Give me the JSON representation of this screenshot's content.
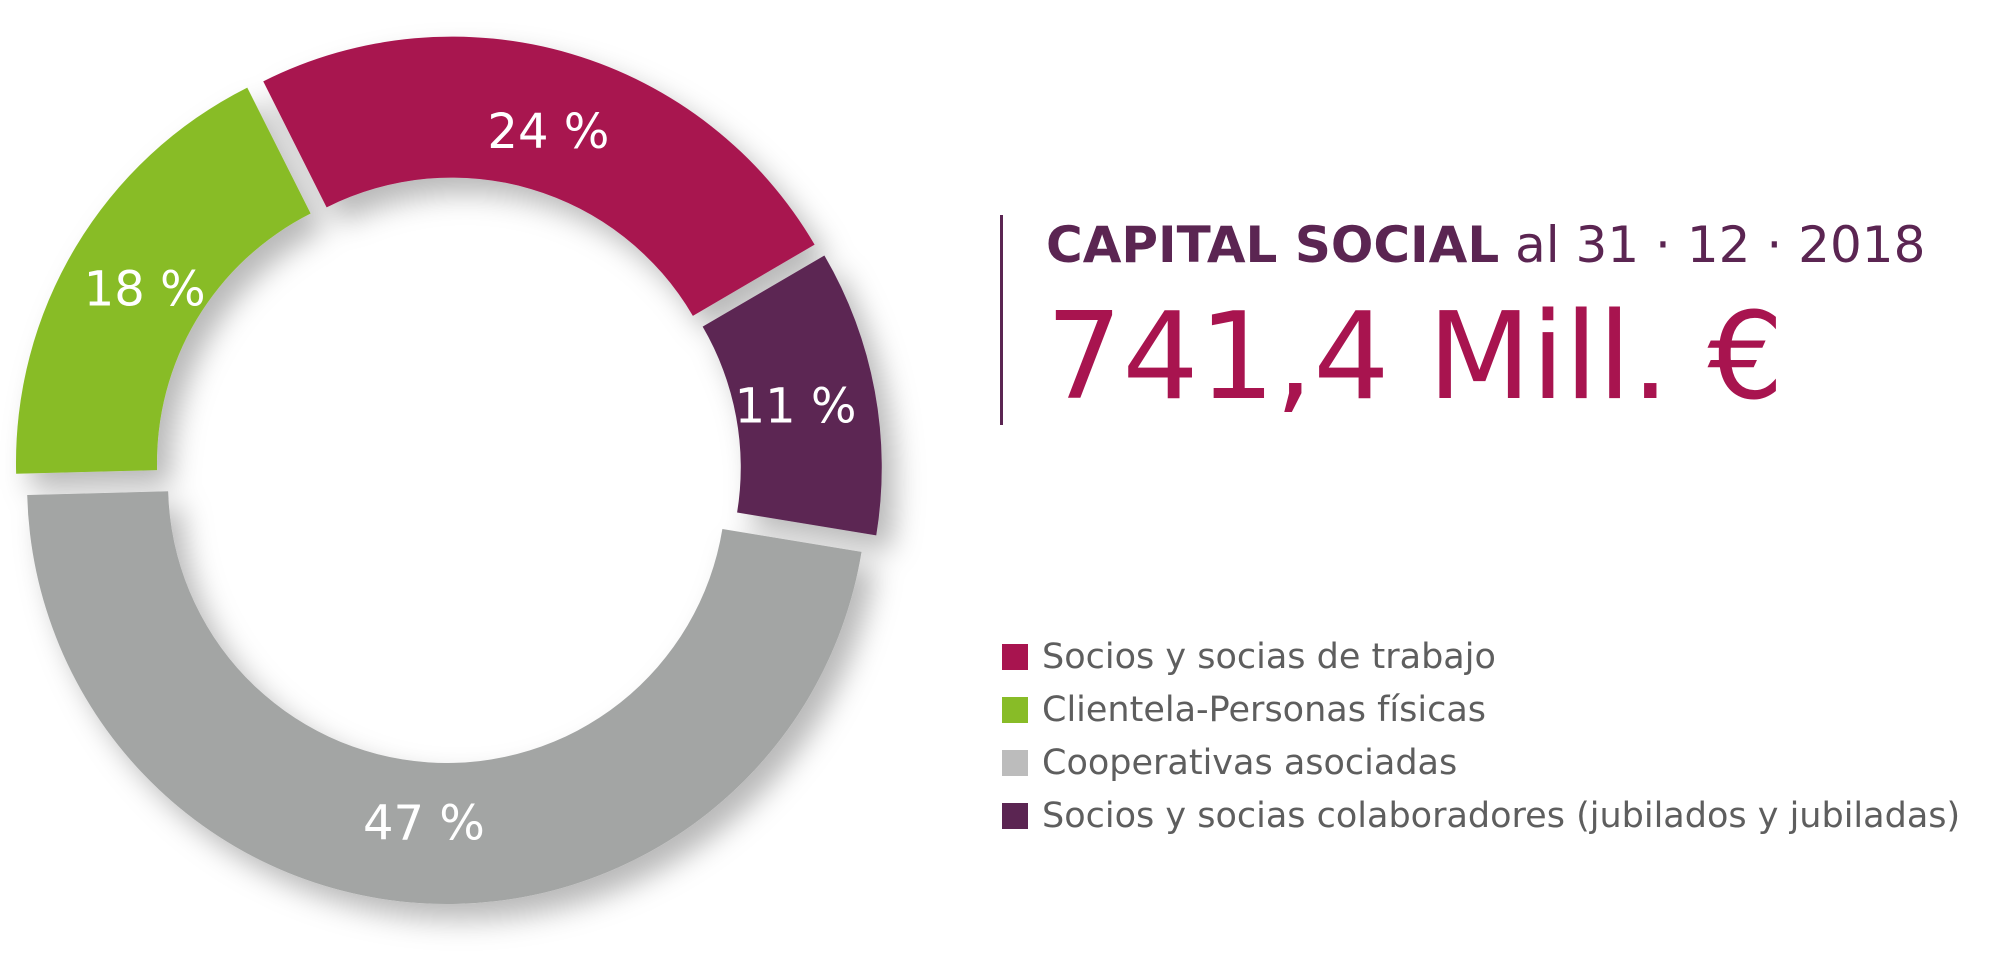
{
  "header": {
    "title_bold": "CAPITAL SOCIAL",
    "title_date": "al 31 · 12 · 2018",
    "amount": "741,4 Mill. €"
  },
  "chart_data": {
    "type": "pie",
    "variant": "donut",
    "title": "CAPITAL SOCIAL al 31 · 12 · 2018",
    "subtitle": "741,4 Mill. €",
    "legend_position": "right",
    "slices": [
      {
        "name": "Socios y socias de trabajo",
        "value": 24,
        "label": "24 %",
        "color": "#a8144f"
      },
      {
        "name": "Socios y socias colaboradores (jubilados y jubiladas)",
        "value": 11,
        "label": "11 %",
        "color": "#5b2552"
      },
      {
        "name": "Cooperativas asociadas",
        "value": 47,
        "label": "47 %",
        "color": "#a3a5a4"
      },
      {
        "name": "Clientela-Personas físicas",
        "value": 18,
        "label": "18 %",
        "color": "#88bc27"
      }
    ]
  },
  "legend": {
    "items": [
      {
        "label": "Socios y socias de trabajo",
        "color": "#a8144f"
      },
      {
        "label": "Clientela-Personas físicas",
        "color": "#88bc27"
      },
      {
        "label": "Cooperativas asociadas",
        "color": "#bcbcbc"
      },
      {
        "label": "Socios y socias colaboradores (jubilados y jubiladas)",
        "color": "#5b2552"
      }
    ]
  }
}
